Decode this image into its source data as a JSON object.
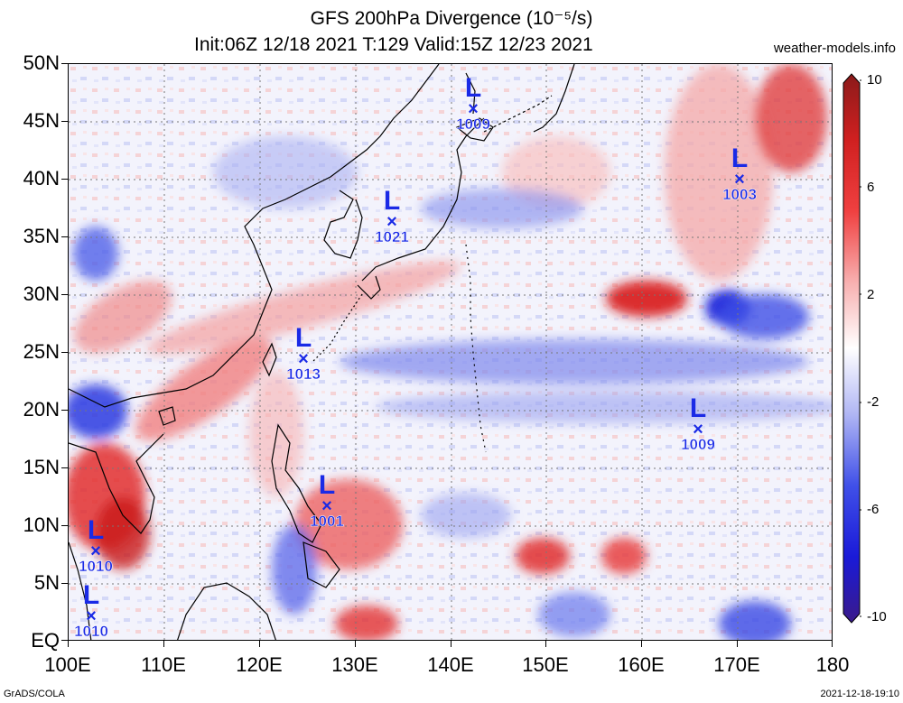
{
  "header": {
    "title": "GFS 200hPa Divergence (10⁻⁵/s)",
    "subtitle": "Init:06Z 12/18 2021 T:129 Valid:15Z 12/23 2021",
    "site": "weather-models.info"
  },
  "axes": {
    "y_labels": [
      "50N",
      "45N",
      "40N",
      "35N",
      "30N",
      "25N",
      "20N",
      "15N",
      "10N",
      "5N",
      "EQ"
    ],
    "x_labels": [
      "100E",
      "110E",
      "120E",
      "130E",
      "140E",
      "150E",
      "160E",
      "170E",
      "180"
    ]
  },
  "colorbar": {
    "labels": [
      "10",
      "6",
      "2",
      "-2",
      "-6",
      "-10"
    ],
    "colors": [
      "#8b1a1a",
      "#e03030",
      "#f4a0a0",
      "#ffffff",
      "#a0a8f0",
      "#2030e0",
      "#3a1a8a"
    ]
  },
  "lows": [
    {
      "pressure": "1009",
      "lon": 142,
      "lat": 45.5
    },
    {
      "pressure": "1003",
      "lon": 170,
      "lat": 39.5
    },
    {
      "pressure": "1021",
      "lon": 134,
      "lat": 36
    },
    {
      "pressure": "1013",
      "lon": 124.5,
      "lat": 24
    },
    {
      "pressure": "1009",
      "lon": 165.5,
      "lat": 18
    },
    {
      "pressure": "1001",
      "lon": 127,
      "lat": 11
    },
    {
      "pressure": "1010",
      "lon": 103,
      "lat": 7.5
    },
    {
      "pressure": "1010",
      "lon": 102.5,
      "lat": 1.7
    }
  ],
  "footer": {
    "left": "GrADS/COLA",
    "right": "2021-12-18-19:10"
  }
}
